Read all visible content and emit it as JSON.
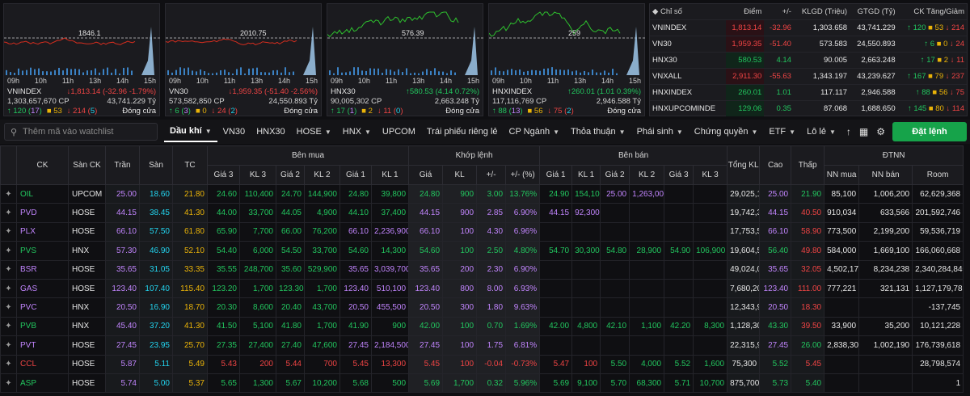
{
  "charts": [
    {
      "name": "VNINDEX",
      "ref_label": "1846.1",
      "value": "1,813.14",
      "change": "-32.96",
      "pct": "-1.79%",
      "volume": "1,303,657,670 CP",
      "value_ty": "43,741.229 Tỷ",
      "up": "120",
      "up_ceil": "17",
      "ref_count": "53",
      "down": "214",
      "down_floor": "5",
      "status": "Đóng cửa",
      "dir": "down"
    },
    {
      "name": "VN30",
      "ref_label": "2010.75",
      "value": "1,959.35",
      "change": "-51.40",
      "pct": "-2.56%",
      "volume": "573,582,850 CP",
      "value_ty": "24,550.893 Tỷ",
      "up": "6",
      "up_ceil": "3",
      "ref_count": "0",
      "down": "24",
      "down_floor": "2",
      "status": "Đóng cửa",
      "dir": "down"
    },
    {
      "name": "HNX30",
      "ref_label": "576.39",
      "value": "580.53",
      "change": "4.14",
      "pct": "0.72%",
      "volume": "90,005,302 CP",
      "value_ty": "2,663.248 Tỷ",
      "up": "17",
      "up_ceil": "1",
      "ref_count": "2",
      "down": "11",
      "down_floor": "0",
      "status": "Đóng cửa",
      "dir": "up"
    },
    {
      "name": "HNXINDEX",
      "ref_label": "259",
      "value": "260.01",
      "change": "1.01",
      "pct": "0.39%",
      "volume": "117,116,769 CP",
      "value_ty": "2,946.588 Tỷ",
      "up": "88",
      "up_ceil": "13",
      "ref_count": "56",
      "down": "75",
      "down_floor": "2",
      "status": "Đóng cửa",
      "dir": "up"
    }
  ],
  "chart_hours": [
    "09h",
    "10h",
    "11h",
    "13h",
    "14h",
    "15h"
  ],
  "index_table": {
    "headers": [
      "Chỉ số",
      "Điểm",
      "+/-",
      "KLGD (Triệu)",
      "GTGD (Tỷ)",
      "CK Tăng/Giảm"
    ],
    "rows": [
      {
        "name": "VNINDEX",
        "point": "1,813.14",
        "chg": "-32.96",
        "vol": "1,303.658",
        "val": "43,741.229",
        "up": "120",
        "ref": "53",
        "down": "214",
        "dir": "down"
      },
      {
        "name": "VN30",
        "point": "1,959.35",
        "chg": "-51.40",
        "vol": "573.583",
        "val": "24,550.893",
        "up": "6",
        "ref": "0",
        "down": "24",
        "dir": "down"
      },
      {
        "name": "HNX30",
        "point": "580.53",
        "chg": "4.14",
        "vol": "90.005",
        "val": "2,663.248",
        "up": "17",
        "ref": "2",
        "down": "11",
        "dir": "up"
      },
      {
        "name": "VNXALL",
        "point": "2,911.30",
        "chg": "-55.63",
        "vol": "1,343.197",
        "val": "43,239.627",
        "up": "167",
        "ref": "79",
        "down": "237",
        "dir": "down"
      },
      {
        "name": "HNXINDEX",
        "point": "260.01",
        "chg": "1.01",
        "vol": "117.117",
        "val": "2,946.588",
        "up": "88",
        "ref": "56",
        "down": "75",
        "dir": "up"
      },
      {
        "name": "HNXUPCOMINDE",
        "point": "129.06",
        "chg": "0.35",
        "vol": "87.068",
        "val": "1,688.650",
        "up": "145",
        "ref": "80",
        "down": "114",
        "dir": "up"
      }
    ]
  },
  "toolbar": {
    "search_placeholder": "Thêm mã vào watchlist",
    "tabs": [
      "Dầu khí",
      "VN30",
      "HNX30",
      "HOSE",
      "HNX",
      "UPCOM",
      "Trái phiếu riêng lẻ",
      "CP Ngành",
      "Thỏa thuận",
      "Phái sinh",
      "Chứng quyền",
      "ETF",
      "Lô lẻ"
    ],
    "tab_chevrons": [
      true,
      false,
      false,
      true,
      true,
      false,
      false,
      true,
      true,
      true,
      true,
      true,
      true
    ],
    "order_button": "Đặt lệnh"
  },
  "board": {
    "group_headers": {
      "buy": "Bên mua",
      "match": "Khớp lệnh",
      "sell": "Bên bán",
      "foreign": "ĐTNN"
    },
    "headers": {
      "ck": "CK",
      "exchange": "Sàn CK",
      "ceil": "Trần",
      "floor": "Sàn",
      "ref": "TC",
      "buy": [
        "Giá 3",
        "KL 3",
        "Giá 2",
        "KL 2",
        "Giá 1",
        "KL 1"
      ],
      "match": [
        "Giá",
        "KL",
        "+/-",
        "+/- (%)"
      ],
      "sell": [
        "Giá 1",
        "KL 1",
        "Giá 2",
        "KL 2",
        "Giá 3",
        "KL 3"
      ],
      "total": "Tổng KL",
      "high": "Cao",
      "low": "Thấp",
      "foreign": [
        "NN mua",
        "NN bán",
        "Room"
      ]
    },
    "rows": [
      {
        "sym": "OIL",
        "ex": "UPCOM",
        "ceil": "25.00",
        "floor": "18.60",
        "ref": "21.80",
        "cls": "up",
        "b3p": "24.60",
        "b3v": "110,400",
        "b2p": "24.70",
        "b2v": "144,900",
        "b1p": "24.80",
        "b1v": "39,800",
        "mp": "24.80",
        "mv": "900",
        "mc": "3.00",
        "mpc": "13.76%",
        "s1p": "24.90",
        "s1v": "154,100",
        "s2p": "25.00",
        "s2v": "1,263,000",
        "s3p": "",
        "s3v": "",
        "total": "29,025,100",
        "high": "25.00",
        "low": "21.90",
        "nnb": "85,100",
        "nns": "1,006,200",
        "room": "62,629,368",
        "c": {
          "b3": "up",
          "b2": "up",
          "b1": "up",
          "m": "up",
          "s1": "up",
          "s2": "ceil",
          "s3": "up",
          "high": "ceil",
          "low": "up"
        }
      },
      {
        "sym": "PVD",
        "ex": "HOSE",
        "ceil": "44.15",
        "floor": "38.45",
        "ref": "41.30",
        "cls": "ceil",
        "b3p": "44.00",
        "b3v": "33,700",
        "b2p": "44.05",
        "b2v": "4,900",
        "b1p": "44.10",
        "b1v": "37,400",
        "mp": "44.15",
        "mv": "900",
        "mc": "2.85",
        "mpc": "6.90%",
        "s1p": "44.15",
        "s1v": "92,300",
        "s2p": "",
        "s2v": "",
        "s3p": "",
        "s3v": "",
        "total": "19,742,300",
        "high": "44.15",
        "low": "40.50",
        "nnb": "910,034",
        "nns": "633,566",
        "room": "201,592,746",
        "c": {
          "b3": "up",
          "b2": "up",
          "b1": "up",
          "m": "ceil",
          "s1": "ceil",
          "s2": "up",
          "s3": "up",
          "high": "ceil",
          "low": "down"
        }
      },
      {
        "sym": "PLX",
        "ex": "HOSE",
        "ceil": "66.10",
        "floor": "57.50",
        "ref": "61.80",
        "cls": "ceil",
        "b3p": "65.90",
        "b3v": "7,700",
        "b2p": "66.00",
        "b2v": "76,200",
        "b1p": "66.10",
        "b1v": "2,236,900",
        "mp": "66.10",
        "mv": "100",
        "mc": "4.30",
        "mpc": "6.96%",
        "s1p": "",
        "s1v": "",
        "s2p": "",
        "s2v": "",
        "s3p": "",
        "s3v": "",
        "total": "17,753,500",
        "high": "66.10",
        "low": "58.90",
        "nnb": "773,500",
        "nns": "2,199,200",
        "room": "59,536,719",
        "c": {
          "b3": "up",
          "b2": "up",
          "b1": "ceil",
          "m": "ceil",
          "s1": "up",
          "s2": "up",
          "s3": "up",
          "high": "ceil",
          "low": "down"
        }
      },
      {
        "sym": "PVS",
        "ex": "HNX",
        "ceil": "57.30",
        "floor": "46.90",
        "ref": "52.10",
        "cls": "up",
        "b3p": "54.40",
        "b3v": "6,000",
        "b2p": "54.50",
        "b2v": "33,700",
        "b1p": "54.60",
        "b1v": "14,300",
        "mp": "54.60",
        "mv": "100",
        "mc": "2.50",
        "mpc": "4.80%",
        "s1p": "54.70",
        "s1v": "30,300",
        "s2p": "54.80",
        "s2v": "28,900",
        "s3p": "54.90",
        "s3v": "106,900",
        "total": "19,604,500",
        "high": "56.40",
        "low": "49.80",
        "nnb": "584,000",
        "nns": "1,669,100",
        "room": "166,060,668",
        "c": {
          "b3": "up",
          "b2": "up",
          "b1": "up",
          "m": "up",
          "s1": "up",
          "s2": "up",
          "s3": "up",
          "high": "up",
          "low": "down"
        }
      },
      {
        "sym": "BSR",
        "ex": "HOSE",
        "ceil": "35.65",
        "floor": "31.05",
        "ref": "33.35",
        "cls": "ceil",
        "b3p": "35.55",
        "b3v": "248,700",
        "b2p": "35.60",
        "b2v": "529,900",
        "b1p": "35.65",
        "b1v": "3,039,700",
        "mp": "35.65",
        "mv": "200",
        "mc": "2.30",
        "mpc": "6.90%",
        "s1p": "",
        "s1v": "",
        "s2p": "",
        "s2v": "",
        "s3p": "",
        "s3v": "",
        "total": "49,024,000",
        "high": "35.65",
        "low": "32.05",
        "nnb": "4,502,174",
        "nns": "8,234,238",
        "room": "2,340,284,840",
        "c": {
          "b3": "up",
          "b2": "up",
          "b1": "ceil",
          "m": "ceil",
          "s1": "up",
          "s2": "up",
          "s3": "up",
          "high": "ceil",
          "low": "down"
        }
      },
      {
        "sym": "GAS",
        "ex": "HOSE",
        "ceil": "123.40",
        "floor": "107.40",
        "ref": "115.40",
        "cls": "ceil",
        "b3p": "123.20",
        "b3v": "1,700",
        "b2p": "123.30",
        "b2v": "1,700",
        "b1p": "123.40",
        "b1v": "510,100",
        "mp": "123.40",
        "mv": "800",
        "mc": "8.00",
        "mpc": "6.93%",
        "s1p": "",
        "s1v": "",
        "s2p": "",
        "s2v": "",
        "s3p": "",
        "s3v": "",
        "total": "7,680,200",
        "high": "123.40",
        "low": "111.00",
        "nnb": "777,221",
        "nns": "321,131",
        "room": "1,127,179,785",
        "c": {
          "b3": "up",
          "b2": "up",
          "b1": "ceil",
          "m": "ceil",
          "s1": "up",
          "s2": "up",
          "s3": "up",
          "high": "ceil",
          "low": "down"
        }
      },
      {
        "sym": "PVC",
        "ex": "HNX",
        "ceil": "20.50",
        "floor": "16.90",
        "ref": "18.70",
        "cls": "ceil",
        "b3p": "20.30",
        "b3v": "8,600",
        "b2p": "20.40",
        "b2v": "43,700",
        "b1p": "20.50",
        "b1v": "455,500",
        "mp": "20.50",
        "mv": "300",
        "mc": "1.80",
        "mpc": "9.63%",
        "s1p": "",
        "s1v": "",
        "s2p": "",
        "s2v": "",
        "s3p": "",
        "s3v": "",
        "total": "12,343,900",
        "high": "20.50",
        "low": "18.30",
        "nnb": "",
        "nns": "",
        "room": "-137,745",
        "c": {
          "b3": "up",
          "b2": "up",
          "b1": "ceil",
          "m": "ceil",
          "s1": "up",
          "s2": "up",
          "s3": "up",
          "high": "ceil",
          "low": "down"
        }
      },
      {
        "sym": "PVB",
        "ex": "HNX",
        "ceil": "45.40",
        "floor": "37.20",
        "ref": "41.30",
        "cls": "up",
        "b3p": "41.50",
        "b3v": "5,100",
        "b2p": "41.80",
        "b2v": "1,700",
        "b1p": "41.90",
        "b1v": "900",
        "mp": "42.00",
        "mv": "100",
        "mc": "0.70",
        "mpc": "1.69%",
        "s1p": "42.00",
        "s1v": "4,800",
        "s2p": "42.10",
        "s2v": "1,100",
        "s3p": "42.20",
        "s3v": "8,300",
        "total": "1,128,300",
        "high": "43.30",
        "low": "39.50",
        "nnb": "33,900",
        "nns": "35,200",
        "room": "10,121,228",
        "c": {
          "b3": "up",
          "b2": "up",
          "b1": "up",
          "m": "up",
          "s1": "up",
          "s2": "up",
          "s3": "up",
          "high": "up",
          "low": "down"
        }
      },
      {
        "sym": "PVT",
        "ex": "HOSE",
        "ceil": "27.45",
        "floor": "23.95",
        "ref": "25.70",
        "cls": "ceil",
        "b3p": "27.35",
        "b3v": "27,400",
        "b2p": "27.40",
        "b2v": "47,600",
        "b1p": "27.45",
        "b1v": "2,184,500",
        "mp": "27.45",
        "mv": "100",
        "mc": "1.75",
        "mpc": "6.81%",
        "s1p": "",
        "s1v": "",
        "s2p": "",
        "s2v": "",
        "s3p": "",
        "s3v": "",
        "total": "22,315,900",
        "high": "27.45",
        "low": "26.00",
        "nnb": "2,838,300",
        "nns": "1,002,190",
        "room": "176,739,618",
        "c": {
          "b3": "up",
          "b2": "up",
          "b1": "ceil",
          "m": "ceil",
          "s1": "up",
          "s2": "up",
          "s3": "up",
          "high": "ceil",
          "low": "up"
        }
      },
      {
        "sym": "CCL",
        "ex": "HOSE",
        "ceil": "5.87",
        "floor": "5.11",
        "ref": "5.49",
        "cls": "down",
        "b3p": "5.43",
        "b3v": "200",
        "b2p": "5.44",
        "b2v": "700",
        "b1p": "5.45",
        "b1v": "13,300",
        "mp": "5.45",
        "mv": "100",
        "mc": "-0.04",
        "mpc": "-0.73%",
        "s1p": "5.47",
        "s1v": "100",
        "s2p": "5.50",
        "s2v": "4,000",
        "s3p": "5.52",
        "s3v": "1,600",
        "total": "75,300",
        "high": "5.52",
        "low": "5.45",
        "nnb": "",
        "nns": "",
        "room": "28,798,574",
        "c": {
          "b3": "down",
          "b2": "down",
          "b1": "down",
          "m": "down",
          "s1": "down",
          "s2": "up",
          "s3": "up",
          "high": "up",
          "low": "down"
        }
      },
      {
        "sym": "ASP",
        "ex": "HOSE",
        "ceil": "5.74",
        "floor": "5.00",
        "ref": "5.37",
        "cls": "up",
        "b3p": "5.65",
        "b3v": "1,300",
        "b2p": "5.67",
        "b2v": "10,200",
        "b1p": "5.68",
        "b1v": "500",
        "mp": "5.69",
        "mv": "1,700",
        "mc": "0.32",
        "mpc": "5.96%",
        "s1p": "5.69",
        "s1v": "9,100",
        "s2p": "5.70",
        "s2v": "68,300",
        "s3p": "5.71",
        "s3v": "10,700",
        "total": "875,700",
        "high": "5.73",
        "low": "5.40",
        "nnb": "",
        "nns": "",
        "room": "1",
        "c": {
          "b3": "up",
          "b2": "up",
          "b1": "up",
          "m": "up",
          "s1": "up",
          "s2": "up",
          "s3": "up",
          "high": "up",
          "low": "up"
        }
      }
    ]
  },
  "colors": {
    "up": "#22c55e",
    "down": "#ef4444",
    "ref": "#eab308",
    "ceil": "#c084fc",
    "floor": "#22d3ee",
    "accent": "#16a34a"
  }
}
